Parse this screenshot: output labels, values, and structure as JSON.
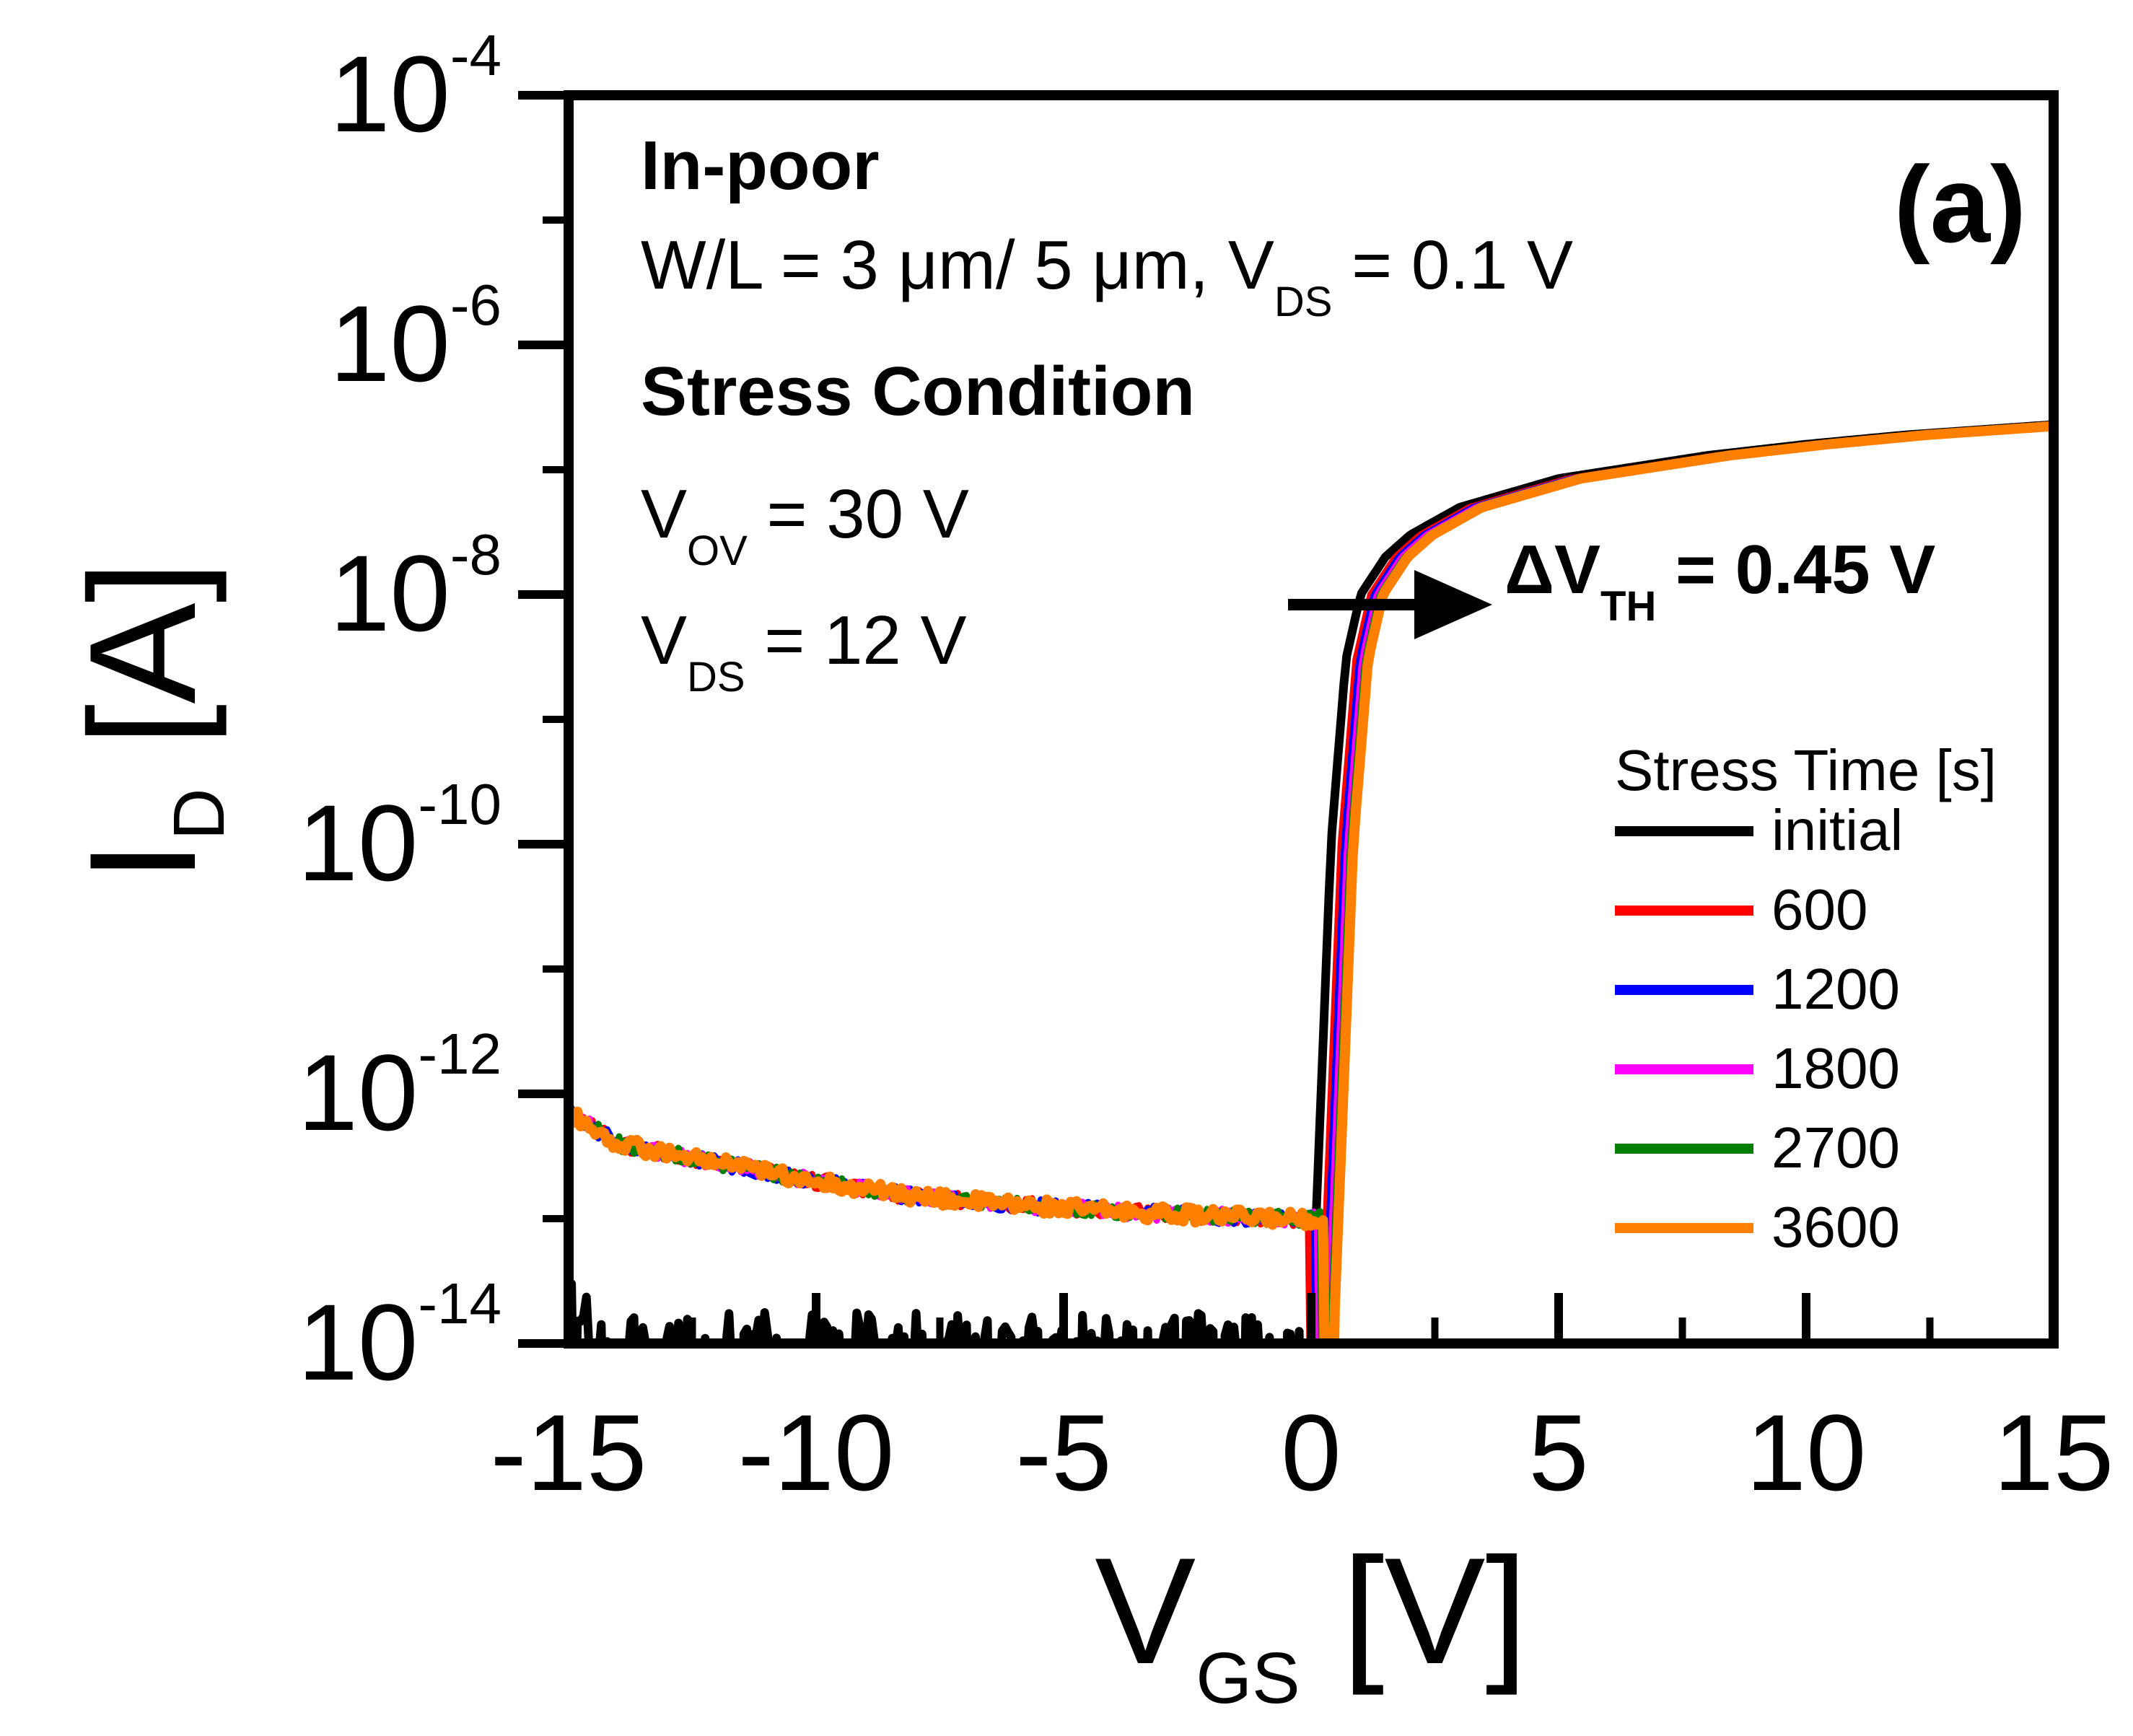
{
  "chart_data": {
    "type": "line",
    "panel_label": "(a)",
    "xaxis": {
      "title_main": "V",
      "title_sub": "GS",
      "title_unit": "[V]",
      "lim": [
        -15,
        15
      ],
      "ticks": [
        -15,
        -10,
        -5,
        0,
        5,
        10,
        15
      ],
      "tick_labels": [
        "-15",
        "-10",
        "-5",
        "0",
        "5",
        "10",
        "15"
      ]
    },
    "yaxis": {
      "title_main": "I",
      "title_sub": "D",
      "title_unit": "[A]",
      "scale": "log",
      "lim": [
        1e-14,
        0.0001
      ],
      "ticks": [
        -14,
        -12,
        -10,
        -8,
        -6,
        -4
      ],
      "tick_base": "10",
      "tick_exponents": [
        "-14",
        "-12",
        "-10",
        "-8",
        "-6",
        "-4"
      ]
    },
    "annotations": {
      "sample": "In-poor",
      "geometry": {
        "text": "W/L = 3 μm/ 5 μm, V",
        "sub": "DS",
        "after": " = 0.1 V"
      },
      "stress_heading": "Stress Condition",
      "vov": {
        "main": "V",
        "sub": "OV",
        "after": " = 30 V"
      },
      "vds": {
        "main": "V",
        "sub": "DS",
        "after": " = 12 V"
      },
      "delta_vth": {
        "main": "ΔV",
        "sub": "TH",
        "after": " = 0.45 V"
      }
    },
    "legend": {
      "title": "Stress Time [s]",
      "placement": "lower-right"
    },
    "grid": false,
    "series": [
      {
        "name": "initial",
        "color": "#000000",
        "vth_shift": 0.0,
        "off_level": "floor"
      },
      {
        "name": "600",
        "color": "#ff0000",
        "vth_shift": 0.2,
        "off_level": 1e-13
      },
      {
        "name": "1200",
        "color": "#0000ff",
        "vth_shift": 0.27,
        "off_level": 1e-13
      },
      {
        "name": "1800",
        "color": "#ff00ff",
        "vth_shift": 0.33,
        "off_level": 1e-13
      },
      {
        "name": "2700",
        "color": "#007f00",
        "vth_shift": 0.39,
        "off_level": 1e-13
      },
      {
        "name": "3600",
        "color": "#ff8000",
        "vth_shift": 0.45,
        "off_level": 1e-13
      }
    ],
    "on_state_points": [
      {
        "x": 0.0,
        "y": 1e-14
      },
      {
        "x": 0.2,
        "y": 1e-12
      },
      {
        "x": 0.4,
        "y": 1e-10
      },
      {
        "x": 0.7,
        "y": 3e-09
      },
      {
        "x": 1.0,
        "y": 1e-08
      },
      {
        "x": 1.5,
        "y": 2e-08
      },
      {
        "x": 2.0,
        "y": 3e-08
      },
      {
        "x": 3.0,
        "y": 5e-08
      },
      {
        "x": 5.0,
        "y": 8.5e-08
      },
      {
        "x": 8.0,
        "y": 1.3e-07
      },
      {
        "x": 10.0,
        "y": 1.6e-07
      },
      {
        "x": 12.0,
        "y": 1.9e-07
      },
      {
        "x": 15.0,
        "y": 2.3e-07
      }
    ],
    "off_state_points": [
      {
        "x": -15,
        "y": 7e-13
      },
      {
        "x": -14,
        "y": 4e-13
      },
      {
        "x": -12,
        "y": 2.8e-13
      },
      {
        "x": -10,
        "y": 2e-13
      },
      {
        "x": -8,
        "y": 1.5e-13
      },
      {
        "x": -6,
        "y": 1.3e-13
      },
      {
        "x": -4,
        "y": 1.15e-13
      },
      {
        "x": -2,
        "y": 1.05e-13
      },
      {
        "x": -0.5,
        "y": 1e-13
      }
    ]
  }
}
